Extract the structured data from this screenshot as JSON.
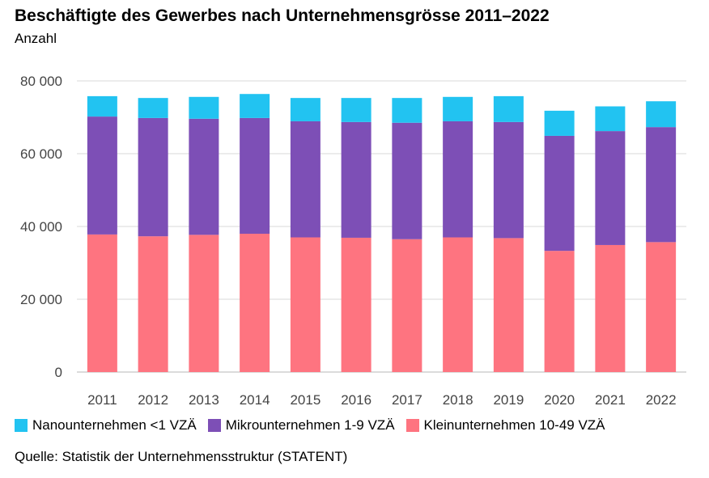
{
  "chart_data": {
    "type": "bar",
    "stacked": true,
    "title": "Beschäftigte des Gewerbes nach Unternehmensgrösse 2011–2022",
    "subtitle": "Anzahl",
    "ylim": [
      0,
      80000
    ],
    "yticks": [
      0,
      20000,
      40000,
      60000,
      80000
    ],
    "ytick_labels": [
      "0",
      "20 000",
      "40 000",
      "60 000",
      "80 000"
    ],
    "grid": true,
    "legend_position": "bottom",
    "categories": [
      "2011",
      "2012",
      "2013",
      "2014",
      "2015",
      "2016",
      "2017",
      "2018",
      "2019",
      "2020",
      "2021",
      "2022"
    ],
    "series": [
      {
        "name": "Kleinunternehmen 10-49 VZÄ",
        "color": "#fe7480",
        "values": [
          37800,
          37300,
          37700,
          38000,
          37000,
          36900,
          36500,
          37000,
          36800,
          33300,
          34900,
          35700
        ]
      },
      {
        "name": "Mikrounternehmen 1-9 VZÄ",
        "color": "#7d4fb6",
        "values": [
          32400,
          32500,
          31900,
          31800,
          31900,
          31800,
          32000,
          31900,
          31900,
          31600,
          31300,
          31600
        ]
      },
      {
        "name": "Nanounternehmen <1 VZÄ",
        "color": "#22c3f1",
        "values": [
          5600,
          5500,
          6000,
          6600,
          6400,
          6600,
          6800,
          6700,
          7100,
          6900,
          6800,
          7100
        ]
      }
    ],
    "legend_order": [
      2,
      1,
      0
    ],
    "source": "Quelle: Statistik der Unternehmensstruktur (STATENT)"
  }
}
